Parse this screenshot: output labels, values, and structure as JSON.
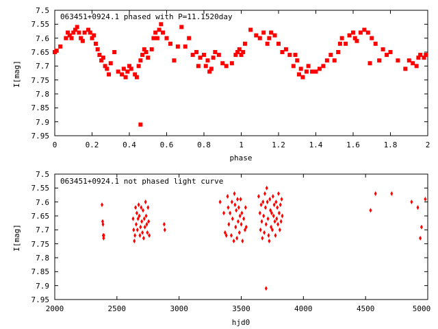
{
  "chart_data": [
    {
      "type": "scatter",
      "title": "063451+0924.1 phased with P=11.1520day",
      "xlabel": "phase",
      "ylabel": "I[mag]",
      "xlim": [
        0,
        2
      ],
      "ylim": [
        7.5,
        7.95
      ],
      "y_inverted": true,
      "grid": false,
      "marker_color": "#ff0000",
      "x_ticks": [
        "0",
        "0.2",
        "0.4",
        "0.6",
        "0.8",
        "1",
        "1.2",
        "1.4",
        "1.6",
        "1.8",
        "2"
      ],
      "y_ticks": [
        "7.5",
        "7.55",
        "7.6",
        "7.65",
        "7.7",
        "7.75",
        "7.8",
        "7.85",
        "7.9",
        "7.95"
      ],
      "series": [
        {
          "points": [
            [
              0.0,
              7.65
            ],
            [
              0.01,
              7.645
            ],
            [
              0.03,
              7.63
            ],
            [
              0.06,
              7.6
            ],
            [
              0.07,
              7.58
            ],
            [
              0.08,
              7.59
            ],
            [
              0.09,
              7.6
            ],
            [
              0.1,
              7.58
            ],
            [
              0.11,
              7.57
            ],
            [
              0.12,
              7.56
            ],
            [
              0.13,
              7.58
            ],
            [
              0.14,
              7.6
            ],
            [
              0.15,
              7.61
            ],
            [
              0.16,
              7.58
            ],
            [
              0.18,
              7.57
            ],
            [
              0.19,
              7.58
            ],
            [
              0.2,
              7.6
            ],
            [
              0.21,
              7.59
            ],
            [
              0.22,
              7.62
            ],
            [
              0.23,
              7.64
            ],
            [
              0.24,
              7.66
            ],
            [
              0.25,
              7.68
            ],
            [
              0.26,
              7.67
            ],
            [
              0.27,
              7.7
            ],
            [
              0.28,
              7.71
            ],
            [
              0.29,
              7.73
            ],
            [
              0.3,
              7.69
            ],
            [
              0.32,
              7.65
            ],
            [
              0.34,
              7.72
            ],
            [
              0.36,
              7.73
            ],
            [
              0.37,
              7.71
            ],
            [
              0.38,
              7.74
            ],
            [
              0.39,
              7.72
            ],
            [
              0.4,
              7.7
            ],
            [
              0.41,
              7.71
            ],
            [
              0.43,
              7.73
            ],
            [
              0.44,
              7.74
            ],
            [
              0.45,
              7.7
            ],
            [
              0.46,
              7.68
            ],
            [
              0.47,
              7.66
            ],
            [
              0.48,
              7.64
            ],
            [
              0.49,
              7.65
            ],
            [
              0.46,
              7.91
            ],
            [
              0.5,
              7.67
            ],
            [
              0.52,
              7.64
            ],
            [
              0.53,
              7.6
            ],
            [
              0.54,
              7.58
            ],
            [
              0.55,
              7.6
            ],
            [
              0.56,
              7.57
            ],
            [
              0.57,
              7.55
            ],
            [
              0.58,
              7.58
            ],
            [
              0.6,
              7.6
            ],
            [
              0.62,
              7.62
            ],
            [
              0.64,
              7.68
            ],
            [
              0.66,
              7.63
            ],
            [
              0.68,
              7.56
            ],
            [
              0.7,
              7.63
            ],
            [
              0.72,
              7.6
            ],
            [
              0.74,
              7.66
            ],
            [
              0.76,
              7.65
            ],
            [
              0.77,
              7.7
            ],
            [
              0.78,
              7.67
            ],
            [
              0.8,
              7.66
            ],
            [
              0.81,
              7.7
            ],
            [
              0.82,
              7.68
            ],
            [
              0.83,
              7.72
            ],
            [
              0.84,
              7.71
            ],
            [
              0.85,
              7.67
            ],
            [
              0.86,
              7.65
            ],
            [
              0.88,
              7.66
            ],
            [
              0.9,
              7.69
            ],
            [
              0.92,
              7.7
            ],
            [
              0.95,
              7.69
            ],
            [
              0.97,
              7.66
            ],
            [
              0.98,
              7.65
            ],
            [
              0.99,
              7.64
            ],
            [
              1.0,
              7.66
            ],
            [
              1.01,
              7.65
            ],
            [
              1.02,
              7.62
            ],
            [
              1.05,
              7.57
            ],
            [
              1.08,
              7.59
            ],
            [
              1.1,
              7.6
            ],
            [
              1.12,
              7.58
            ],
            [
              1.14,
              7.62
            ],
            [
              1.15,
              7.6
            ],
            [
              1.16,
              7.58
            ],
            [
              1.18,
              7.59
            ],
            [
              1.2,
              7.62
            ],
            [
              1.22,
              7.65
            ],
            [
              1.24,
              7.64
            ],
            [
              1.26,
              7.66
            ],
            [
              1.28,
              7.7
            ],
            [
              1.29,
              7.66
            ],
            [
              1.3,
              7.68
            ],
            [
              1.31,
              7.73
            ],
            [
              1.32,
              7.71
            ],
            [
              1.33,
              7.74
            ],
            [
              1.35,
              7.72
            ],
            [
              1.36,
              7.7
            ],
            [
              1.38,
              7.72
            ],
            [
              1.4,
              7.72
            ],
            [
              1.42,
              7.71
            ],
            [
              1.44,
              7.7
            ],
            [
              1.46,
              7.68
            ],
            [
              1.48,
              7.66
            ],
            [
              1.5,
              7.68
            ],
            [
              1.52,
              7.65
            ],
            [
              1.53,
              7.62
            ],
            [
              1.54,
              7.6
            ],
            [
              1.56,
              7.62
            ],
            [
              1.58,
              7.59
            ],
            [
              1.6,
              7.58
            ],
            [
              1.61,
              7.6
            ],
            [
              1.62,
              7.61
            ],
            [
              1.64,
              7.58
            ],
            [
              1.66,
              7.57
            ],
            [
              1.68,
              7.58
            ],
            [
              1.69,
              7.69
            ],
            [
              1.7,
              7.6
            ],
            [
              1.72,
              7.62
            ],
            [
              1.74,
              7.68
            ],
            [
              1.76,
              7.64
            ],
            [
              1.78,
              7.66
            ],
            [
              1.8,
              7.65
            ],
            [
              1.84,
              7.68
            ],
            [
              1.88,
              7.71
            ],
            [
              1.9,
              7.68
            ],
            [
              1.92,
              7.69
            ],
            [
              1.94,
              7.7
            ],
            [
              1.95,
              7.67
            ],
            [
              1.96,
              7.66
            ],
            [
              1.98,
              7.67
            ],
            [
              1.99,
              7.66
            ]
          ]
        }
      ]
    },
    {
      "type": "scatter",
      "title": "063451+0924.1 not phased light curve",
      "xlabel": "hjd0",
      "ylabel": "I[mag]",
      "xlim": [
        2000,
        5000
      ],
      "ylim": [
        7.5,
        7.95
      ],
      "y_inverted": true,
      "grid": false,
      "marker_color": "#ff0000",
      "x_ticks": [
        "2000",
        "2500",
        "3000",
        "3500",
        "4000",
        "4500",
        "5000"
      ],
      "y_ticks": [
        "7.5",
        "7.55",
        "7.6",
        "7.65",
        "7.7",
        "7.75",
        "7.8",
        "7.85",
        "7.9",
        "7.95"
      ],
      "series": [
        {
          "points": [
            [
              2380,
              7.61
            ],
            [
              2385,
              7.67
            ],
            [
              2388,
              7.68
            ],
            [
              2390,
              7.72
            ],
            [
              2393,
              7.73
            ],
            [
              2395,
              7.72
            ],
            [
              2630,
              7.66
            ],
            [
              2635,
              7.7
            ],
            [
              2640,
              7.74
            ],
            [
              2645,
              7.72
            ],
            [
              2650,
              7.62
            ],
            [
              2655,
              7.68
            ],
            [
              2660,
              7.64
            ],
            [
              2665,
              7.7
            ],
            [
              2670,
              7.66
            ],
            [
              2675,
              7.61
            ],
            [
              2680,
              7.65
            ],
            [
              2685,
              7.72
            ],
            [
              2690,
              7.69
            ],
            [
              2695,
              7.62
            ],
            [
              2700,
              7.67
            ],
            [
              2705,
              7.71
            ],
            [
              2710,
              7.63
            ],
            [
              2715,
              7.73
            ],
            [
              2720,
              7.66
            ],
            [
              2725,
              7.69
            ],
            [
              2730,
              7.6
            ],
            [
              2735,
              7.65
            ],
            [
              2740,
              7.68
            ],
            [
              2745,
              7.71
            ],
            [
              2750,
              7.62
            ],
            [
              2755,
              7.67
            ],
            [
              2760,
              7.72
            ],
            [
              2880,
              7.68
            ],
            [
              2885,
              7.7
            ],
            [
              3330,
              7.6
            ],
            [
              3360,
              7.64
            ],
            [
              3370,
              7.71
            ],
            [
              3380,
              7.72
            ],
            [
              3390,
              7.58
            ],
            [
              3395,
              7.62
            ],
            [
              3400,
              7.68
            ],
            [
              3410,
              7.64
            ],
            [
              3420,
              7.72
            ],
            [
              3425,
              7.6
            ],
            [
              3430,
              7.66
            ],
            [
              3440,
              7.74
            ],
            [
              3445,
              7.57
            ],
            [
              3450,
              7.61
            ],
            [
              3455,
              7.69
            ],
            [
              3460,
              7.63
            ],
            [
              3465,
              7.73
            ],
            [
              3470,
              7.59
            ],
            [
              3475,
              7.67
            ],
            [
              3480,
              7.62
            ],
            [
              3485,
              7.71
            ],
            [
              3490,
              7.65
            ],
            [
              3495,
              7.59
            ],
            [
              3500,
              7.68
            ],
            [
              3505,
              7.64
            ],
            [
              3510,
              7.74
            ],
            [
              3520,
              7.66
            ],
            [
              3530,
              7.7
            ],
            [
              3535,
              7.62
            ],
            [
              3540,
              7.69
            ],
            [
              3640,
              7.58
            ],
            [
              3650,
              7.64
            ],
            [
              3655,
              7.7
            ],
            [
              3660,
              7.61
            ],
            [
              3665,
              7.67
            ],
            [
              3670,
              7.73
            ],
            [
              3675,
              7.6
            ],
            [
              3680,
              7.65
            ],
            [
              3685,
              7.71
            ],
            [
              3690,
              7.57
            ],
            [
              3695,
              7.62
            ],
            [
              3700,
              7.68
            ],
            [
              3705,
              7.55
            ],
            [
              3710,
              7.6
            ],
            [
              3715,
              7.66
            ],
            [
              3720,
              7.72
            ],
            [
              3725,
              7.74
            ],
            [
              3700,
              7.91
            ],
            [
              3730,
              7.59
            ],
            [
              3735,
              7.63
            ],
            [
              3740,
              7.69
            ],
            [
              3745,
              7.64
            ],
            [
              3750,
              7.7
            ],
            [
              3755,
              7.58
            ],
            [
              3760,
              7.65
            ],
            [
              3765,
              7.61
            ],
            [
              3770,
              7.67
            ],
            [
              3775,
              7.72
            ],
            [
              3780,
              7.6
            ],
            [
              3785,
              7.66
            ],
            [
              3790,
              7.62
            ],
            [
              3795,
              7.68
            ],
            [
              3800,
              7.57
            ],
            [
              3805,
              7.64
            ],
            [
              3810,
              7.7
            ],
            [
              3815,
              7.61
            ],
            [
              3820,
              7.67
            ],
            [
              3825,
              7.59
            ],
            [
              3830,
              7.65
            ],
            [
              4540,
              7.63
            ],
            [
              4580,
              7.57
            ],
            [
              4710,
              7.57
            ],
            [
              4870,
              7.6
            ],
            [
              4920,
              7.62
            ],
            [
              4940,
              7.73
            ],
            [
              4950,
              7.69
            ],
            [
              4980,
              7.59
            ]
          ]
        }
      ]
    }
  ]
}
